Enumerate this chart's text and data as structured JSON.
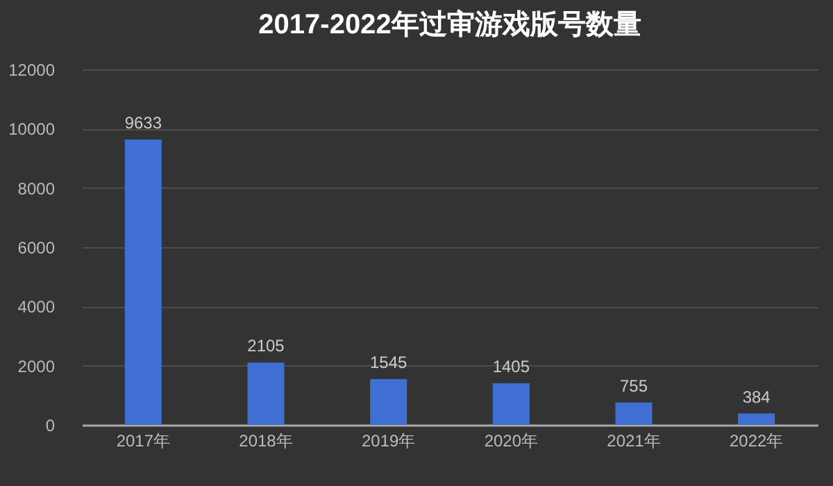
{
  "chart_data": {
    "type": "bar",
    "title": "2017-2022年过审游戏版号数量",
    "categories": [
      "2017年",
      "2018年",
      "2019年",
      "2020年",
      "2021年",
      "2022年"
    ],
    "values": [
      9633,
      2105,
      1545,
      1405,
      755,
      384
    ],
    "color": "#3f6fd2",
    "ylim": [
      0,
      12000
    ],
    "yticks": [
      0,
      2000,
      4000,
      6000,
      8000,
      10000,
      12000
    ],
    "grid": "y",
    "data_labels": true
  }
}
